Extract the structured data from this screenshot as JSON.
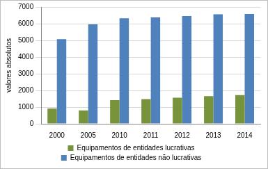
{
  "chart_data": {
    "type": "bar",
    "y_label": "valores absolutos",
    "categories": [
      "2000",
      "2005",
      "2010",
      "2011",
      "2012",
      "2013",
      "2014"
    ],
    "series": [
      {
        "name": "Equipamentos de entidades lucrativas",
        "color": "#77933c",
        "values": [
          920,
          800,
          1420,
          1480,
          1560,
          1660,
          1720
        ]
      },
      {
        "name": "Equipamentos de entidades não lucrativas",
        "color": "#4f81bd",
        "values": [
          5070,
          5960,
          6320,
          6380,
          6460,
          6560,
          6580
        ]
      }
    ],
    "ylim": [
      0,
      7000
    ],
    "yticks": [
      0,
      1000,
      2000,
      3000,
      4000,
      5000,
      6000,
      7000
    ],
    "grid": true,
    "legend": "bottom"
  }
}
